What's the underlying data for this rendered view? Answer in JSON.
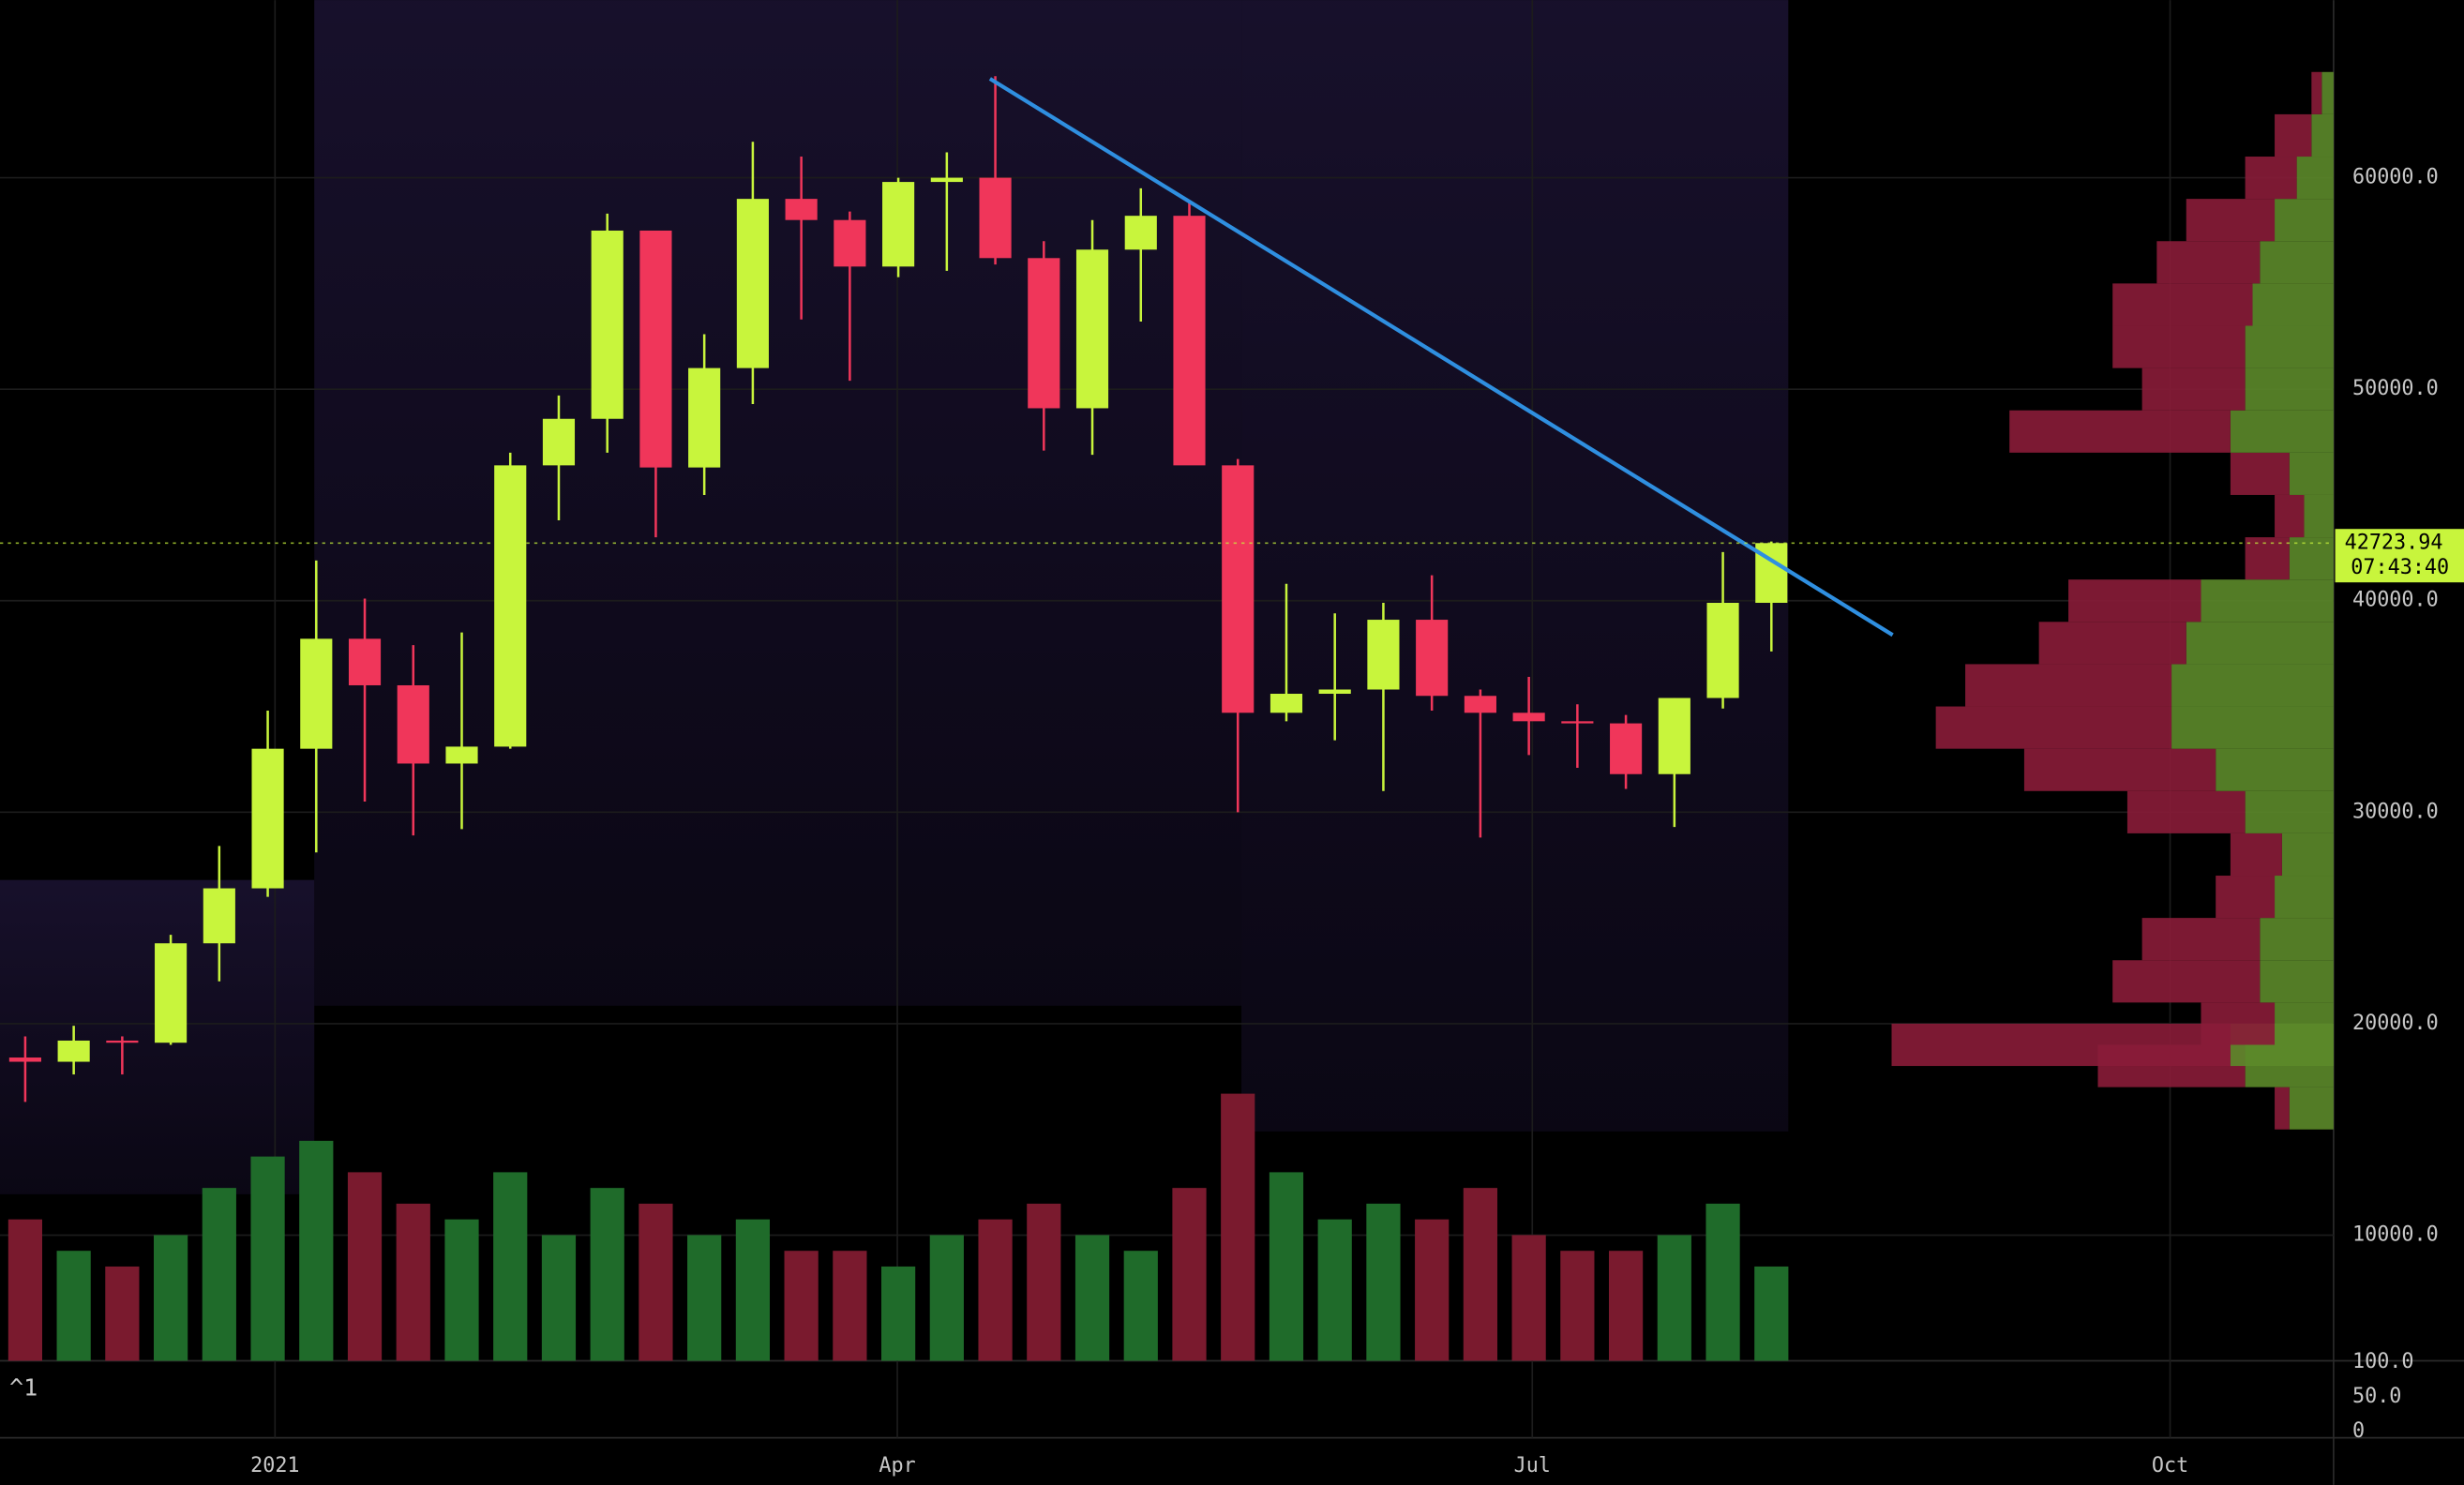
{
  "chart_data": {
    "type": "candlestick",
    "categories": [
      null,
      null,
      null,
      null,
      null,
      null,
      null,
      null,
      null,
      null,
      null,
      null,
      null,
      null,
      null,
      null,
      null,
      null,
      null,
      null,
      null,
      null,
      null,
      null,
      null,
      null,
      null,
      null,
      null,
      null,
      null,
      null,
      null,
      null,
      null,
      null,
      null
    ],
    "open": [
      18400,
      18200,
      19200,
      19100,
      23800,
      26400,
      33000,
      38200,
      36000,
      32300,
      33100,
      46400,
      48600,
      57500,
      46300,
      51000,
      59000,
      58000,
      55800,
      59800,
      60000,
      56200,
      49100,
      56600,
      58200,
      46400,
      34700,
      35600,
      35800,
      39100,
      35500,
      34700,
      34300,
      34200,
      31800,
      35400,
      39900
    ],
    "high": [
      19400,
      19900,
      19400,
      24200,
      28400,
      34800,
      41900,
      40100,
      37900,
      38500,
      47000,
      49700,
      58300,
      57500,
      52600,
      61700,
      61000,
      58400,
      60000,
      61200,
      64800,
      57000,
      58000,
      59500,
      58900,
      46700,
      40800,
      39400,
      39900,
      41200,
      35800,
      36400,
      35100,
      34600,
      35400,
      42300,
      42800
    ],
    "low": [
      16300,
      17600,
      17600,
      19000,
      22000,
      26000,
      28100,
      30500,
      28900,
      29200,
      33000,
      43800,
      47000,
      43000,
      45000,
      49300,
      53300,
      50400,
      55300,
      55600,
      55900,
      47100,
      46900,
      53200,
      46600,
      30000,
      34300,
      33400,
      31000,
      34800,
      28800,
      32700,
      32100,
      31100,
      29300,
      34900,
      37600
    ],
    "close": [
      18200,
      19200,
      19100,
      23800,
      26400,
      33000,
      38200,
      36000,
      32300,
      33100,
      46400,
      48600,
      57500,
      46300,
      51000,
      59000,
      58000,
      55800,
      59800,
      60000,
      56200,
      49100,
      56600,
      58200,
      46400,
      34700,
      35600,
      35800,
      39100,
      35500,
      34700,
      34300,
      34200,
      31800,
      35400,
      39900,
      42723.94
    ],
    "up_color": "#c8f53c",
    "down_color": "#f0365a",
    "ylim": [
      4060,
      68400
    ],
    "yticks": [
      {
        "value": 10000,
        "label": "10000.0"
      },
      {
        "value": 20000,
        "label": "20000.0"
      },
      {
        "value": 30000,
        "label": "30000.0"
      },
      {
        "value": 40000,
        "label": "40000.0"
      },
      {
        "value": 50000,
        "label": "50000.0"
      },
      {
        "value": 60000,
        "label": "60000.0"
      }
    ],
    "xlim": [
      -0.52,
      47.59
    ],
    "xticks": [
      {
        "value": 5.15,
        "label": "2021"
      },
      {
        "value": 17.98,
        "label": "Apr"
      },
      {
        "value": 31.07,
        "label": "Jul"
      },
      {
        "value": 44.22,
        "label": "Oct"
      }
    ],
    "grid": true,
    "countdown": "07:43:40",
    "trendline": {
      "x": [
        19.89,
        38.5
      ],
      "y": [
        64680,
        38380
      ],
      "color": "#2f8fe0"
    },
    "volume": {
      "values": [
        90,
        70,
        60,
        80,
        110,
        130,
        140,
        120,
        100,
        90,
        120,
        80,
        110,
        100,
        80,
        90,
        70,
        70,
        60,
        80,
        90,
        100,
        80,
        70,
        110,
        170,
        120,
        90,
        100,
        90,
        110,
        80,
        70,
        70,
        80,
        100,
        60
      ],
      "ylim": [
        0,
        300
      ],
      "up_color": "#1f6b2a",
      "down_color": "#7a1a2e"
    },
    "volume_profile": {
      "levels": [
        16000,
        18000,
        19000,
        20000,
        22000,
        24000,
        26000,
        28000,
        30000,
        32000,
        34000,
        36000,
        38000,
        40000,
        42000,
        44000,
        46000,
        48000,
        50000,
        52000,
        54000,
        56000,
        58000,
        60000,
        62000,
        64000
      ],
      "up": [
        30,
        60,
        70,
        40,
        50,
        50,
        40,
        35,
        60,
        80,
        110,
        110,
        100,
        90,
        30,
        20,
        30,
        70,
        60,
        60,
        55,
        50,
        40,
        25,
        15,
        8
      ],
      "down": [
        10,
        100,
        230,
        50,
        100,
        80,
        40,
        35,
        80,
        130,
        160,
        140,
        100,
        90,
        30,
        20,
        40,
        150,
        70,
        90,
        95,
        70,
        60,
        35,
        25,
        7
      ],
      "xlim": [
        0,
        320
      ],
      "up_color": "#5c8a2a",
      "down_color": "#8a1c38"
    },
    "lower_pane": {
      "label": "^1",
      "ylim": [
        -9,
        102
      ],
      "yticks": [
        0,
        {
          "value": 50,
          "label": "50.0"
        },
        {
          "value": 100,
          "label": "100.0"
        }
      ]
    }
  }
}
